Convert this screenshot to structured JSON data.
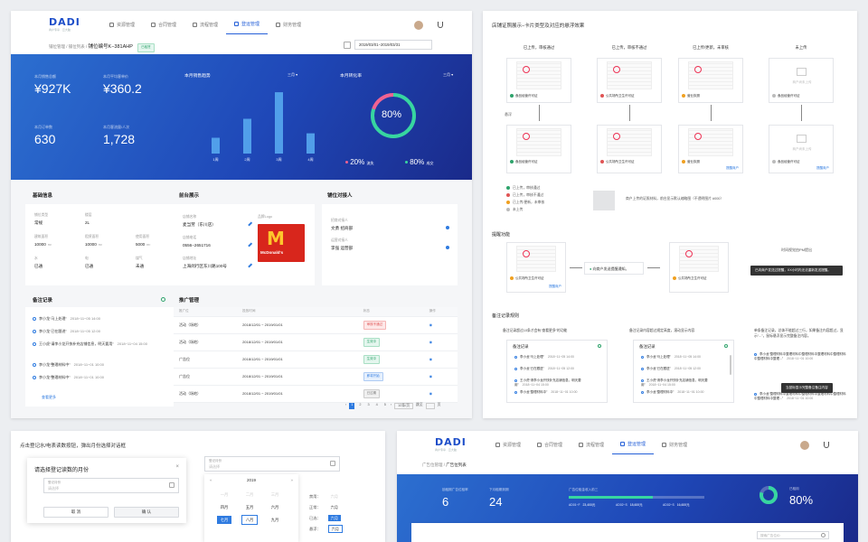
{
  "nav": {
    "logo": "DADI",
    "logo_sub": "商户专享 · 云大脑",
    "items": [
      "资源管理",
      "合同管理",
      "流程管理",
      "登运管理",
      "财务管理"
    ]
  },
  "card1": {
    "breadcrumb": [
      "铺位管理",
      "铺位列表"
    ],
    "page_title": "铺位编号K−381AHP",
    "status": "已租赁",
    "date_range": "2019/03/01−2019/03/31",
    "kpis": [
      {
        "label": "本月销售总额",
        "value": "¥927K"
      },
      {
        "label": "本月平均客单价",
        "value": "¥360.2"
      },
      {
        "label": "本月订单数",
        "value": "630"
      },
      {
        "label": "本月客流量/人次",
        "value": "1,728"
      }
    ],
    "trend_title": "本月销售趋势",
    "trend_period": "三月",
    "conv_title": "本月转化率",
    "conv_period": "三月",
    "conv_value": "80%",
    "conv_legend": [
      {
        "value": "20%",
        "label": "流失"
      },
      {
        "value": "80%",
        "label": "成交"
      }
    ],
    "basic_title": "基础信息",
    "basic_fields": [
      {
        "label": "铺位类型",
        "value": "常规"
      },
      {
        "label": "楼层",
        "value": "2L"
      },
      {
        "label": "",
        "value": ""
      },
      {
        "label": "建筑面积",
        "value": "10000",
        "unit": "m²"
      },
      {
        "label": "租赁面积",
        "value": "10000",
        "unit": "m²"
      },
      {
        "label": "使用面积",
        "value": "5000",
        "unit": "m²"
      },
      {
        "label": "水",
        "value": "已通"
      },
      {
        "label": "电",
        "value": "已通"
      },
      {
        "label": "煤气",
        "value": "未通"
      }
    ],
    "front_title": "前台展示",
    "front_fields": [
      {
        "label": "店铺名称",
        "value": "麦当劳（东川店）"
      },
      {
        "label": "店铺电话",
        "value": "0556−2651716"
      },
      {
        "label": "店铺地址",
        "value": "上海闵行区东川路100号"
      }
    ],
    "front_logo_label": "品牌Logo",
    "contact_title": "铺位对接人",
    "contacts": [
      {
        "label": "招商对接人",
        "value": "文勇  招商部"
      },
      {
        "label": "运营对接人",
        "value": "李强  运营部"
      }
    ],
    "remarks_title": "备注记录",
    "remarks": [
      {
        "who": "李小龙",
        "text": "“马上处理”",
        "time": "2018−11−05 14:00"
      },
      {
        "who": "李小龙",
        "text": "“已在跟进”",
        "time": "2018−11−05 12:00"
      },
      {
        "who": "王小虎",
        "text": "“请李小龙开快补充店铺信息，明天要用”",
        "time": "2018−11−04 15:00"
      },
      {
        "who": "李小龙",
        "text": "“整理材料中”",
        "time": "2018−11−01 10:00"
      },
      {
        "who": "李小龙",
        "text": "“整理材料中”",
        "time": "2018−11−01 10:00"
      }
    ],
    "remarks_more": "查看更多",
    "promo_title": "推广管理",
    "promo_headers": [
      "推广位",
      "投放时间",
      "",
      "状态",
      "操作"
    ],
    "promo_rows": [
      {
        "slot": "活动（场地）",
        "time": "2018/12/01 − 2019/01/01",
        "status": "审核不通过",
        "kind": "red"
      },
      {
        "slot": "活动（场地）",
        "time": "2018/12/01 − 2019/01/01",
        "status": "生效中",
        "kind": "green"
      },
      {
        "slot": "广告位",
        "time": "2018/12/01 − 2019/01/01",
        "status": "生效中",
        "kind": "green"
      },
      {
        "slot": "广告位",
        "time": "2018/12/01 − 2019/01/01",
        "status": "即将开始",
        "kind": "blue"
      },
      {
        "slot": "活动（场地）",
        "time": "2018/12/01 − 2019/01/01",
        "status": "已过期",
        "kind": "gray"
      }
    ],
    "pager": [
      "1",
      "2",
      "3",
      "4",
      "5"
    ],
    "pager_size": "10条/页",
    "pager_jump": "跳至",
    "pager_page": "页"
  },
  "card2": {
    "title": "店铺证照展示−卡片类型及对应的悬浮效果",
    "col_titles": [
      "已上传，审核通过",
      "已上传，审核不通过",
      "已上传/更新，未审核",
      "未上传"
    ],
    "hover_label": "悬浮",
    "doc_caps": [
      "食品经营许可证",
      "公共场所卫生许可证",
      "营业执照",
      "食品经营许可证"
    ],
    "upload_placeholder": "商户尚未上传",
    "hover_actions": [
      "",
      "",
      "提醒商户",
      "提醒商户"
    ],
    "legend": [
      {
        "text": "已上传，审核通过",
        "color": "#2ea36b"
      },
      {
        "text": "已上传，审核不通过",
        "color": "#e05454"
      },
      {
        "text": "已上传/更新，未审核",
        "color": "#f0a020"
      },
      {
        "text": "未上传",
        "color": "#bbbbbb"
      }
    ],
    "legend_note": "商户上传的证照材料，前台显示默认缩略图（不透明图片 #000）",
    "remind_title": "提醒功能",
    "remind_popup": "向商户发送提醒通知。",
    "remind_tip": "已向商户发送过提醒，XX小时内无法重新发送提醒。",
    "remind_note": "时间视觉由PM提出",
    "remind_doc": "公共场所卫生许可证",
    "remind_action": "提醒商户",
    "rule_title": "备注记录规则",
    "rule_cols": [
      "备注记录超过10条才会有“查看更多”的功能",
      "备注记录内容超过规定高度，滚动显示内容",
      "单条备注记录，总体不能超过三行，如果备注内容超过，显示“...”，鼠标悬浮显示完整备注内容。"
    ],
    "rule_box_title": "备注记录",
    "rule_items": [
      {
        "who": "李小龙",
        "text": "“马上处理”",
        "time": "2018−11−05 14:00"
      },
      {
        "who": "李小龙",
        "text": "“已在跟进”",
        "time": "2018−11−05 12:00"
      },
      {
        "who": "王小虎",
        "text": "“请李小龙开快补充店铺信息，明天要用”",
        "time": "2018−11−04 15:00"
      },
      {
        "who": "李小龙",
        "text": "“整理材料中”",
        "time": "2018−11−01 10:00"
      }
    ],
    "rule_long": "李小龙“整理材料中整理材料中整理材料中整理材料中整理材料中整理材料中整理...”",
    "rule_long_time": "2018−11−01 10:00",
    "rule_tip": "当鼠标显示完整备注备注内容"
  },
  "card3": {
    "title": "点击登记水/电表读数按钮，弹出月份选择对话框",
    "dialog_title": "请选择登记读数的月份",
    "field_label": "登记月份",
    "field_placeholder": "请选择",
    "cancel": "取 消",
    "confirm": "确 认",
    "picker_label": "登记月份",
    "picker_placeholder": "请选择",
    "year": "2019",
    "months": [
      "一月",
      "二月",
      "三月",
      "四月",
      "五月",
      "六月",
      "七月",
      "八月",
      "九月"
    ],
    "legend": [
      {
        "label": "禁用：",
        "value": "六月"
      },
      {
        "label": "正常：",
        "value": "六月"
      },
      {
        "label": "已选：",
        "value": "六月"
      },
      {
        "label": "悬浮：",
        "value": "六月"
      }
    ]
  },
  "card4": {
    "breadcrumb": [
      "广告位管理",
      "广告位列表"
    ],
    "kpis": [
      {
        "label": "锁租期广告位租率",
        "value": "6"
      },
      {
        "label": "下月租期到期",
        "value": "24"
      }
    ],
    "bar_label": "广告位租金收入前三",
    "bar_items": [
      {
        "name": "AD01−F",
        "value": "23,400元"
      },
      {
        "name": "AD02−S",
        "value": "18,600元"
      },
      {
        "name": "AD02−S",
        "value": "16,600元"
      }
    ],
    "rate_label": "已租用",
    "rate_value": "80%",
    "search_placeholder": "搜索广告位ID"
  },
  "chart_data": {
    "type": "bar",
    "title": "本月销售趋势",
    "categories": [
      "1周",
      "2周",
      "3周",
      "4周"
    ],
    "values": [
      25,
      55,
      97,
      32
    ],
    "ylim": [
      0,
      100
    ]
  },
  "colors": {
    "accent": "#2560d8",
    "hero_start": "#2c6fd0",
    "hero_end": "#1a2a8a",
    "ring": "#37d6a0",
    "ring_loss": "#f06292"
  }
}
